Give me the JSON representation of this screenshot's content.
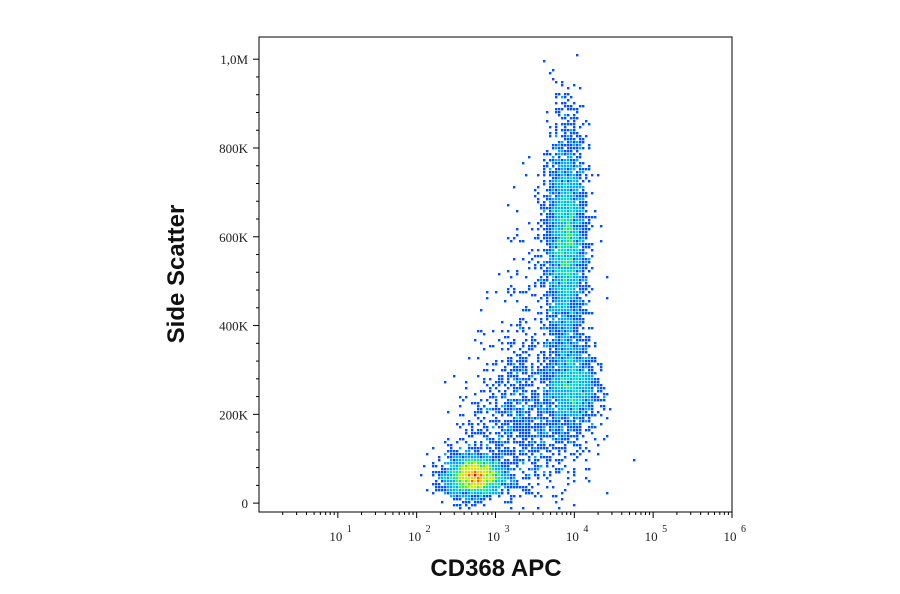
{
  "chart_data": {
    "type": "scatter",
    "title": "",
    "xlabel": "CD368 APC",
    "ylabel": "Side Scatter",
    "xscale": "log",
    "xlim": [
      1,
      1000000
    ],
    "ylim": [
      -20000,
      1050000
    ],
    "x_ticks": [
      {
        "base": "10",
        "exp": "1",
        "value": 10
      },
      {
        "base": "10",
        "exp": "2",
        "value": 100
      },
      {
        "base": "10",
        "exp": "3",
        "value": 1000
      },
      {
        "base": "10",
        "exp": "4",
        "value": 10000
      },
      {
        "base": "10",
        "exp": "5",
        "value": 100000
      },
      {
        "base": "10",
        "exp": "6",
        "value": 1000000
      }
    ],
    "y_ticks": [
      {
        "label": "0",
        "value": 0
      },
      {
        "label": "200K",
        "value": 200000
      },
      {
        "label": "400K",
        "value": 400000
      },
      {
        "label": "600K",
        "value": 600000
      },
      {
        "label": "800K",
        "value": 800000
      },
      {
        "label": "1,0M",
        "value": 1000000
      }
    ],
    "grid": false,
    "legend": "none",
    "colormap": [
      "#0000c8",
      "#0050ff",
      "#00a8ff",
      "#00e0c0",
      "#40f040",
      "#c8f000",
      "#ffc800",
      "#ff6000",
      "#e00000"
    ],
    "populations": [
      {
        "x_median": 550,
        "y_center": 60000,
        "x_log_spread": 0.18,
        "y_spread": 22000,
        "count": 3000
      },
      {
        "x_median": 8000,
        "y_center": 580000,
        "x_log_spread": 0.12,
        "y_spread": 130000,
        "count": 3500
      },
      {
        "x_median": 9500,
        "y_center": 260000,
        "x_log_spread": 0.15,
        "y_spread": 50000,
        "count": 1400
      },
      {
        "x_median": 3000,
        "y_center": 180000,
        "x_log_spread": 0.3,
        "y_spread": 90000,
        "count": 900
      }
    ]
  }
}
